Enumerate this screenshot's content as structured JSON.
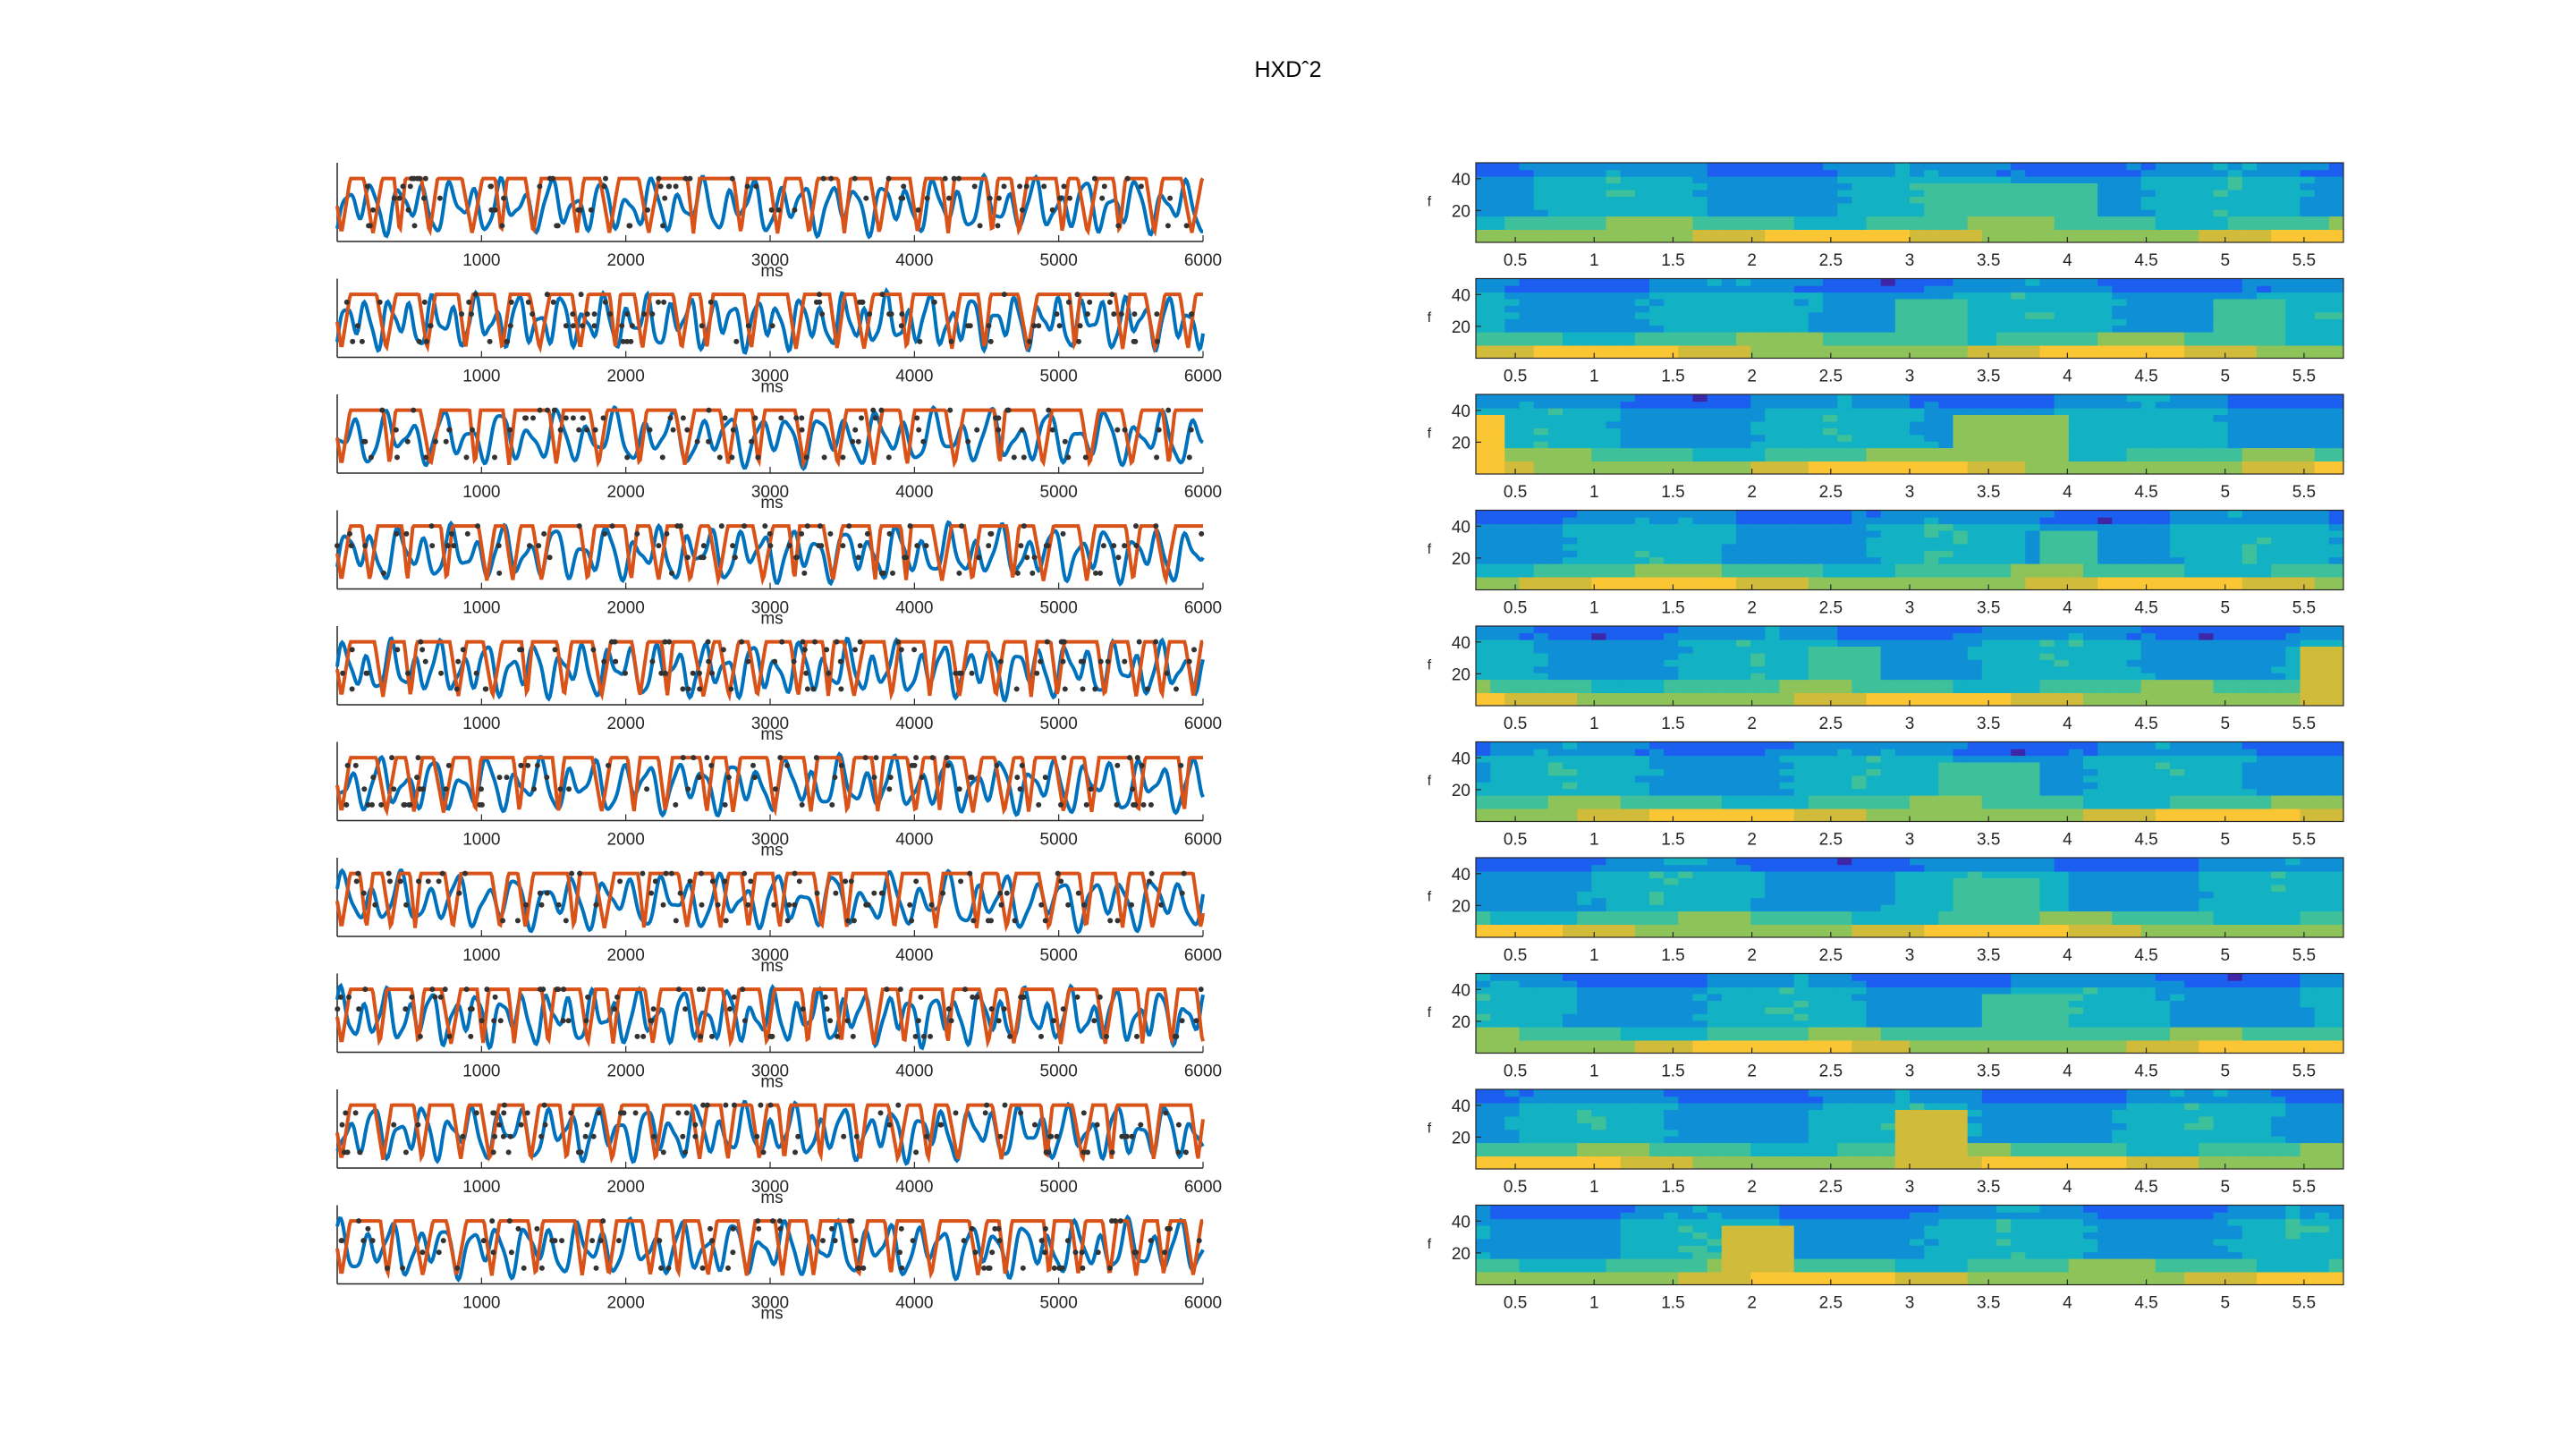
{
  "figure": {
    "title": "HXDˆ2"
  },
  "colors": {
    "model_line": "#d95319",
    "signal_line": "#0072bd",
    "events": "#333333",
    "axis": "#262626",
    "colormap": [
      "#3e26a8",
      "#1c5ff0",
      "#0f8fd5",
      "#12b1c4",
      "#3ec09a",
      "#8ec35a",
      "#d1bb3a",
      "#fbc633",
      "#f9fb15"
    ]
  },
  "chart_data": [
    {
      "type": "line",
      "panel": "left-time-series",
      "series": [],
      "xlim": [
        0,
        6000
      ],
      "ylim": [
        0,
        1
      ],
      "xticks": [
        1000,
        2000,
        3000,
        4000,
        5000,
        6000
      ],
      "xtick_labels": [
        "1000",
        "2000",
        "3000",
        "4000",
        "5000",
        "6000"
      ],
      "xlabel": "ms",
      "ylabel": "",
      "rows": [
        {
          "seed": 11,
          "oscillations": 34
        },
        {
          "seed": 23,
          "oscillations": 40
        },
        {
          "seed": 37,
          "oscillations": 30
        },
        {
          "seed": 41,
          "oscillations": 33
        },
        {
          "seed": 53,
          "oscillations": 36
        },
        {
          "seed": 67,
          "oscillations": 32
        },
        {
          "seed": 71,
          "oscillations": 30
        },
        {
          "seed": 83,
          "oscillations": 38
        },
        {
          "seed": 97,
          "oscillations": 35
        },
        {
          "seed": 101,
          "oscillations": 33
        }
      ]
    },
    {
      "type": "heatmap",
      "panel": "right-spectrograms",
      "xlim": [
        0.25,
        5.75
      ],
      "ylim": [
        0,
        50
      ],
      "xticks": [
        0.5,
        1,
        1.5,
        2,
        2.5,
        3,
        3.5,
        4,
        4.5,
        5,
        5.5
      ],
      "xtick_labels": [
        "0.5",
        "1",
        "1.5",
        "2",
        "2.5",
        "3",
        "3.5",
        "4",
        "4.5",
        "5",
        "5.5"
      ],
      "yticks": [
        20,
        40
      ],
      "ytick_labels": [
        "20",
        "40"
      ],
      "ylabel": "f",
      "rows": [
        {
          "seed": 5,
          "patches": [
            {
              "x0": 3.1,
              "x1": 4.2,
              "level": 0.55
            }
          ]
        },
        {
          "seed": 9,
          "patches": [
            {
              "x0": 2.9,
              "x1": 3.4,
              "level": 0.5
            },
            {
              "x0": 4.9,
              "x1": 5.4,
              "level": 0.55
            }
          ]
        },
        {
          "seed": 13,
          "patches": [
            {
              "x0": 0.25,
              "x1": 0.45,
              "level": 0.85
            },
            {
              "x0": 3.3,
              "x1": 4.0,
              "level": 0.6
            }
          ]
        },
        {
          "seed": 17,
          "patches": [
            {
              "x0": 3.8,
              "x1": 4.2,
              "level": 0.5
            }
          ]
        },
        {
          "seed": 21,
          "patches": [
            {
              "x0": 2.4,
              "x1": 2.8,
              "level": 0.55
            },
            {
              "x0": 5.5,
              "x1": 5.75,
              "level": 0.7
            }
          ]
        },
        {
          "seed": 25,
          "patches": [
            {
              "x0": 3.2,
              "x1": 3.8,
              "level": 0.5
            }
          ]
        },
        {
          "seed": 29,
          "patches": [
            {
              "x0": 3.3,
              "x1": 3.8,
              "level": 0.55
            }
          ]
        },
        {
          "seed": 33,
          "patches": [
            {
              "x0": 3.5,
              "x1": 4.0,
              "level": 0.45
            }
          ]
        },
        {
          "seed": 37,
          "patches": [
            {
              "x0": 2.9,
              "x1": 3.4,
              "level": 0.8
            }
          ]
        },
        {
          "seed": 41,
          "patches": [
            {
              "x0": 1.8,
              "x1": 2.3,
              "level": 0.75
            }
          ]
        }
      ]
    }
  ]
}
